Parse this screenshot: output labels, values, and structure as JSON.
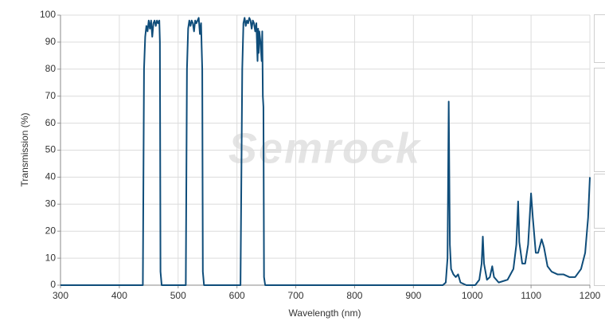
{
  "chart_data": {
    "type": "line",
    "watermark": "Semrock",
    "x_label": "Wavelength (nm)",
    "y_label": "Transmission (%)",
    "color": "#0f4d7a",
    "grid": true,
    "xlim": [
      300,
      1200
    ],
    "ylim": [
      0,
      100
    ],
    "xticks": [
      300,
      400,
      500,
      600,
      700,
      800,
      900,
      1000,
      1100,
      1200
    ],
    "yticks": [
      0,
      10,
      20,
      30,
      40,
      50,
      60,
      70,
      80,
      90,
      100
    ],
    "x": [
      300,
      440,
      442,
      444,
      446,
      448,
      450,
      452,
      454,
      456,
      458,
      460,
      462,
      464,
      466,
      468,
      469,
      470,
      472,
      513,
      515,
      517,
      519,
      521,
      523,
      525,
      527,
      529,
      531,
      533,
      535,
      537,
      539,
      540,
      541,
      542,
      544,
      606,
      609,
      611,
      613,
      615,
      617,
      619,
      621,
      623,
      625,
      627,
      629,
      631,
      633,
      634,
      635,
      636,
      637,
      638,
      640,
      642,
      643,
      644,
      645,
      646,
      648,
      950,
      955,
      958,
      960,
      962,
      964,
      968,
      972,
      976,
      980,
      990,
      1005,
      1012,
      1016,
      1018,
      1020,
      1025,
      1030,
      1034,
      1037,
      1045,
      1060,
      1070,
      1075,
      1078,
      1080,
      1085,
      1090,
      1095,
      1100,
      1103,
      1108,
      1112,
      1118,
      1122,
      1128,
      1135,
      1145,
      1155,
      1165,
      1175,
      1185,
      1192,
      1197,
      1200
    ],
    "values": [
      0,
      0,
      80,
      92,
      96,
      94,
      98,
      95,
      98,
      92,
      97,
      98,
      96,
      98,
      97,
      98,
      90,
      5,
      0,
      0,
      80,
      95,
      98,
      96,
      98,
      97,
      94,
      98,
      97,
      98,
      99,
      93,
      97,
      88,
      80,
      5,
      0,
      0,
      80,
      97,
      99,
      96,
      98,
      97,
      99,
      98,
      95,
      98,
      97,
      94,
      97,
      90,
      83,
      95,
      86,
      94,
      90,
      83,
      94,
      70,
      66,
      3,
      0,
      0,
      1,
      10,
      68,
      15,
      6,
      4,
      3,
      4,
      1,
      0,
      0,
      2,
      8,
      18,
      8,
      2,
      3,
      7,
      3,
      1,
      2,
      6,
      15,
      31,
      16,
      8,
      8,
      15,
      34,
      25,
      12,
      12,
      17,
      14,
      7,
      5,
      4,
      4,
      3,
      3,
      6,
      12,
      25,
      40
    ]
  }
}
